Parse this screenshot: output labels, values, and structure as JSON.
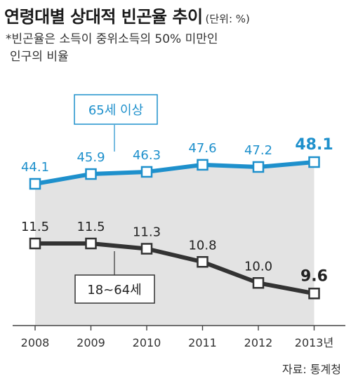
{
  "title": "연령대별 상대적 빈곤율 추이",
  "unit": "(단위: %)",
  "note_line1": "*빈곤율은 소득이 중위소득의 50% 미만인",
  "note_line2": "인구의 비율",
  "source": "자료: 통계청",
  "colors": {
    "senior": "#1e90cc",
    "working": "#333333",
    "area": "#e3e3e3",
    "axis": "#444444"
  },
  "chart_data": {
    "type": "line",
    "x": [
      "2008",
      "2009",
      "2010",
      "2011",
      "2012",
      "2013년"
    ],
    "ylim": [
      0,
      55
    ],
    "grid": false,
    "series": [
      {
        "name": "65세 이상",
        "values": [
          44.1,
          45.9,
          46.3,
          47.6,
          47.2,
          48.1
        ],
        "color": "#1e90cc",
        "labels": [
          "44.1",
          "45.9",
          "46.3",
          "47.6",
          "47.2",
          "48.1"
        ]
      },
      {
        "name": "18~64세",
        "values": [
          11.5,
          11.5,
          11.3,
          10.8,
          10.0,
          9.6
        ],
        "color": "#333333",
        "labels": [
          "11.5",
          "11.5",
          "11.3",
          "10.8",
          "10.0",
          "9.6"
        ]
      }
    ]
  }
}
